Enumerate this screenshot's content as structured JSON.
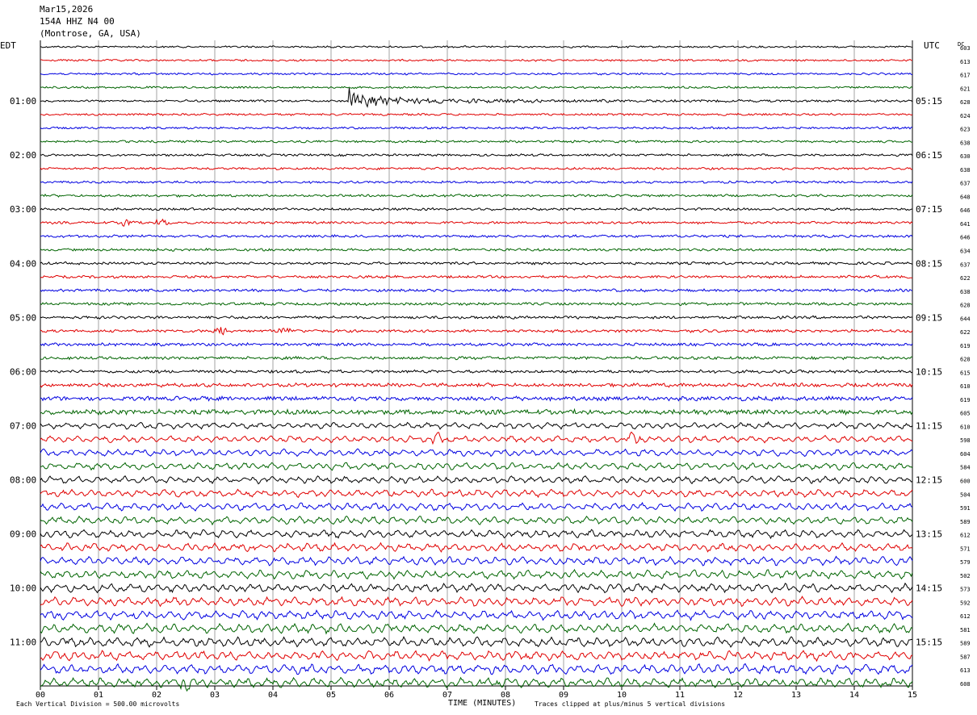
{
  "header": {
    "date": "Mar15,2026",
    "station": "154A HHZ N4 00",
    "location": "(Montrose, GA, USA)"
  },
  "left_tz": "EDT",
  "right_tz": "UTC",
  "dc_label": "DC",
  "footer": {
    "scale_note": "Each Vertical Division =  500.00 microvolts",
    "xlabel": "TIME (MINUTES)",
    "clip_note": "Traces clipped at plus/minus 5 vertical divisions"
  },
  "colors": {
    "cycle": [
      "#000000",
      "#e00000",
      "#0000e0",
      "#006400"
    ],
    "grid": "#8c8c8c"
  },
  "chart_data": {
    "type": "line",
    "title": "154A HHZ N4 00",
    "xlabel": "TIME (MINUTES)",
    "xlim": [
      0,
      15
    ],
    "x_ticks": [
      "00",
      "01",
      "02",
      "03",
      "04",
      "05",
      "06",
      "07",
      "08",
      "09",
      "10",
      "11",
      "12",
      "13",
      "14",
      "15"
    ],
    "grid": true,
    "row_count": 48,
    "left_hour_labels": [
      {
        "row": 4,
        "label": "01:00"
      },
      {
        "row": 8,
        "label": "02:00"
      },
      {
        "row": 12,
        "label": "03:00"
      },
      {
        "row": 16,
        "label": "04:00"
      },
      {
        "row": 20,
        "label": "05:00"
      },
      {
        "row": 24,
        "label": "06:00"
      },
      {
        "row": 28,
        "label": "07:00"
      },
      {
        "row": 32,
        "label": "08:00"
      },
      {
        "row": 36,
        "label": "09:00"
      },
      {
        "row": 40,
        "label": "10:00"
      },
      {
        "row": 44,
        "label": "11:00"
      }
    ],
    "right_hour_labels": [
      {
        "row": 4,
        "label": "05:15"
      },
      {
        "row": 8,
        "label": "06:15"
      },
      {
        "row": 12,
        "label": "07:15"
      },
      {
        "row": 16,
        "label": "08:15"
      },
      {
        "row": 20,
        "label": "09:15"
      },
      {
        "row": 24,
        "label": "10:15"
      },
      {
        "row": 28,
        "label": "11:15"
      },
      {
        "row": 32,
        "label": "12:15"
      },
      {
        "row": 36,
        "label": "13:15"
      },
      {
        "row": 40,
        "label": "14:15"
      },
      {
        "row": 44,
        "label": "15:15"
      }
    ],
    "dc_values": [
      "603",
      "613",
      "617",
      "621",
      "628",
      "624",
      "623",
      "638",
      "630",
      "638",
      "637",
      "648",
      "646",
      "641",
      "646",
      "634",
      "637",
      "622",
      "638",
      "628",
      "644",
      "622",
      "619",
      "628",
      "615",
      "610",
      "619",
      "605",
      "610",
      "598",
      "604",
      "584",
      "600",
      "504",
      "591",
      "589",
      "612",
      "571",
      "579",
      "502",
      "573",
      "592",
      "612",
      "581",
      "589",
      "587",
      "613",
      "608"
    ],
    "events": [
      {
        "row": 4,
        "minute": 5.3,
        "amplitude": "large",
        "note": "clipped arrival with long coda"
      },
      {
        "row": 13,
        "minute": 1.5,
        "amplitude": "medium"
      },
      {
        "row": 13,
        "minute": 2.1,
        "amplitude": "medium"
      },
      {
        "row": 21,
        "minute": 3.1,
        "amplitude": "medium"
      },
      {
        "row": 21,
        "minute": 4.2,
        "amplitude": "medium"
      },
      {
        "row": 29,
        "minute": 6.8,
        "amplitude": "medium"
      },
      {
        "row": 29,
        "minute": 10.2,
        "amplitude": "medium"
      },
      {
        "row": 47,
        "minute": 2.5,
        "amplitude": "medium"
      }
    ]
  }
}
